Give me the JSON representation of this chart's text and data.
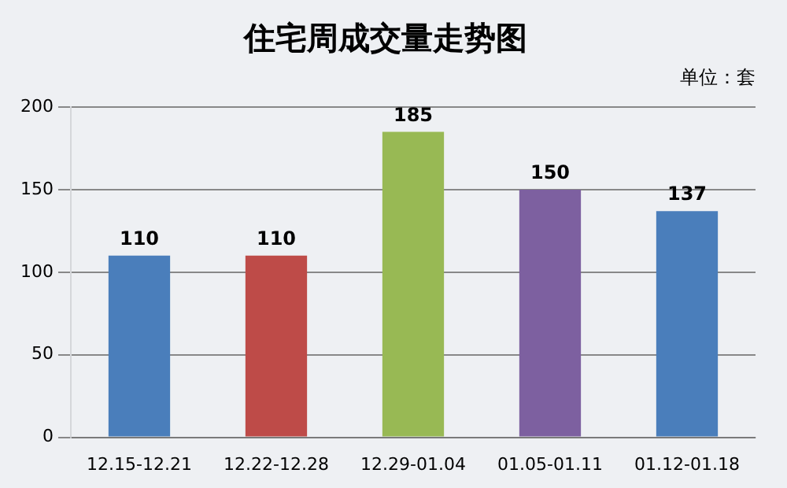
{
  "chart_data": {
    "type": "bar",
    "title": "住宅周成交量走势图",
    "annotations": [
      "单位：套"
    ],
    "categories": [
      "12.15-12.21",
      "12.22-12.28",
      "12.29-01.04",
      "01.05-01.11",
      "01.12-01.18"
    ],
    "values": [
      110,
      110,
      185,
      150,
      137
    ],
    "colors": [
      "#4a7ebb",
      "#be4b48",
      "#98b954",
      "#7d60a0",
      "#4a7ebb"
    ],
    "ylim": [
      0,
      200
    ],
    "yticks": [
      0,
      50,
      100,
      150,
      200
    ],
    "grid": "y",
    "data_labels": true,
    "legend": false
  }
}
